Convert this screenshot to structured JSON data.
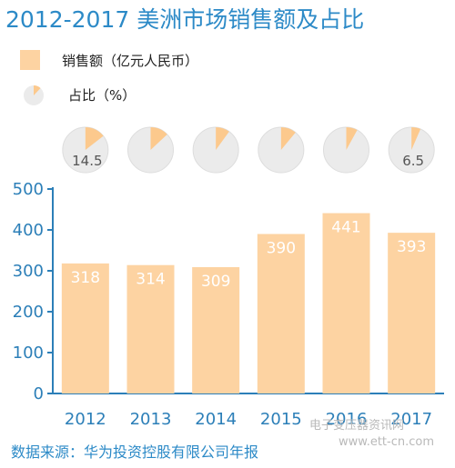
{
  "title": "2012-2017 美洲市场销售额及占比",
  "legend": {
    "sales_label": "销售额（亿元人民币）",
    "share_label": "占比（%）"
  },
  "colors": {
    "bar": "#fdd3a2",
    "pie_fill": "#fcc98d",
    "pie_bg": "#ebebeb",
    "axis": "#2c7fb8",
    "title": "#2c8ac7",
    "bar_label": "#ffffff"
  },
  "source": "数据来源：华为投资控股有限公司年报",
  "watermark": {
    "cn": "电子变压器资讯网",
    "url": "www.ett-cn.com"
  },
  "chart_data": {
    "type": "bar",
    "categories": [
      "2012",
      "2013",
      "2014",
      "2015",
      "2016",
      "2017"
    ],
    "series": [
      {
        "name": "销售额（亿元人民币）",
        "values": [
          318,
          314,
          309,
          390,
          441,
          393
        ]
      },
      {
        "name": "占比（%）",
        "values": [
          14.5,
          13,
          10,
          11,
          8,
          6.5
        ]
      }
    ],
    "pie_labels": [
      "14.5",
      "",
      "",
      "",
      "",
      "6.5"
    ],
    "yticks": [
      "0",
      "100",
      "200",
      "300",
      "400",
      "500"
    ],
    "ylim": [
      0,
      500
    ],
    "grid": false,
    "legend_position": "top-left"
  }
}
